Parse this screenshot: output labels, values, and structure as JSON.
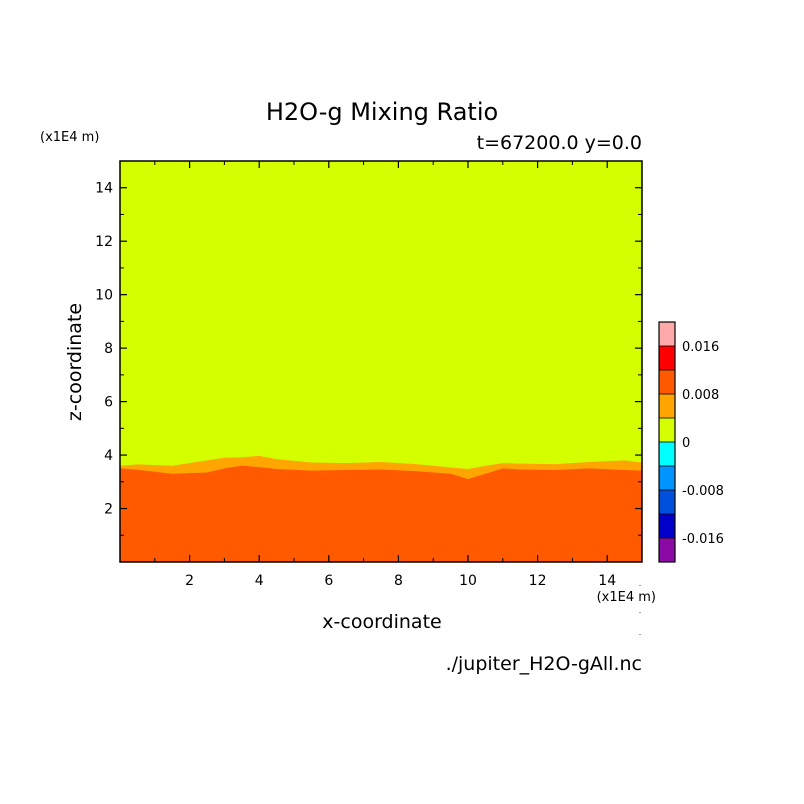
{
  "chart_data": {
    "type": "heatmap",
    "title": "H2O-g Mixing Ratio",
    "subtitle": "t=67200.0 y=0.0",
    "xlabel": "x-coordinate",
    "ylabel": "z-coordinate",
    "x_unit": "(x1E4 m)",
    "y_unit": "(x1E4 m)",
    "xlim": [
      0,
      15
    ],
    "ylim": [
      0,
      15
    ],
    "x_ticks": [
      "2",
      "4",
      "6",
      "8",
      "10",
      "12",
      "14"
    ],
    "y_ticks": [
      "2",
      "4",
      "6",
      "8",
      "10",
      "12",
      "14"
    ],
    "colorbar": {
      "labels": [
        "0.016",
        "0.008",
        "0",
        "-0.008",
        "-0.016"
      ],
      "label_values": [
        0.016,
        0.008,
        0,
        -0.008,
        -0.016
      ],
      "levels": [
        -0.02,
        -0.016,
        -0.012,
        -0.008,
        -0.004,
        0,
        0.004,
        0.008,
        0.012,
        0.016,
        0.02
      ],
      "colors": [
        "#8b0aa5",
        "#0000c8",
        "#0050dc",
        "#0094ff",
        "#00ffff",
        "#d4ff00",
        "#ffa500",
        "#ff5a00",
        "#ff0000",
        "#ffaaaa"
      ]
    },
    "fields": {
      "background_level": "0 to 0.004",
      "background_color": "#d4ff00",
      "upper_boundary_level": "0.004 to 0.008",
      "upper_boundary_color": "#ffa500",
      "lower_layer_level": "0.008 to 0.012",
      "lower_layer_color": "#ff5a00"
    },
    "boundary_x": [
      0,
      0.5,
      1.5,
      2.5,
      3.0,
      3.5,
      4.0,
      4.5,
      5.5,
      6.5,
      7.5,
      8.5,
      9.5,
      10.0,
      10.5,
      11.0,
      11.5,
      12.5,
      13.5,
      14.5,
      15.0
    ],
    "upper_boundary_z": [
      3.6,
      3.65,
      3.6,
      3.8,
      3.9,
      3.92,
      3.97,
      3.85,
      3.72,
      3.7,
      3.74,
      3.66,
      3.54,
      3.48,
      3.6,
      3.7,
      3.68,
      3.66,
      3.74,
      3.8,
      3.72
    ],
    "lower_boundary_z": [
      3.5,
      3.45,
      3.3,
      3.35,
      3.5,
      3.6,
      3.55,
      3.48,
      3.42,
      3.44,
      3.46,
      3.4,
      3.3,
      3.1,
      3.3,
      3.5,
      3.46,
      3.44,
      3.5,
      3.44,
      3.42
    ]
  },
  "source_file": "./jupiter_H2O-gAll.nc"
}
